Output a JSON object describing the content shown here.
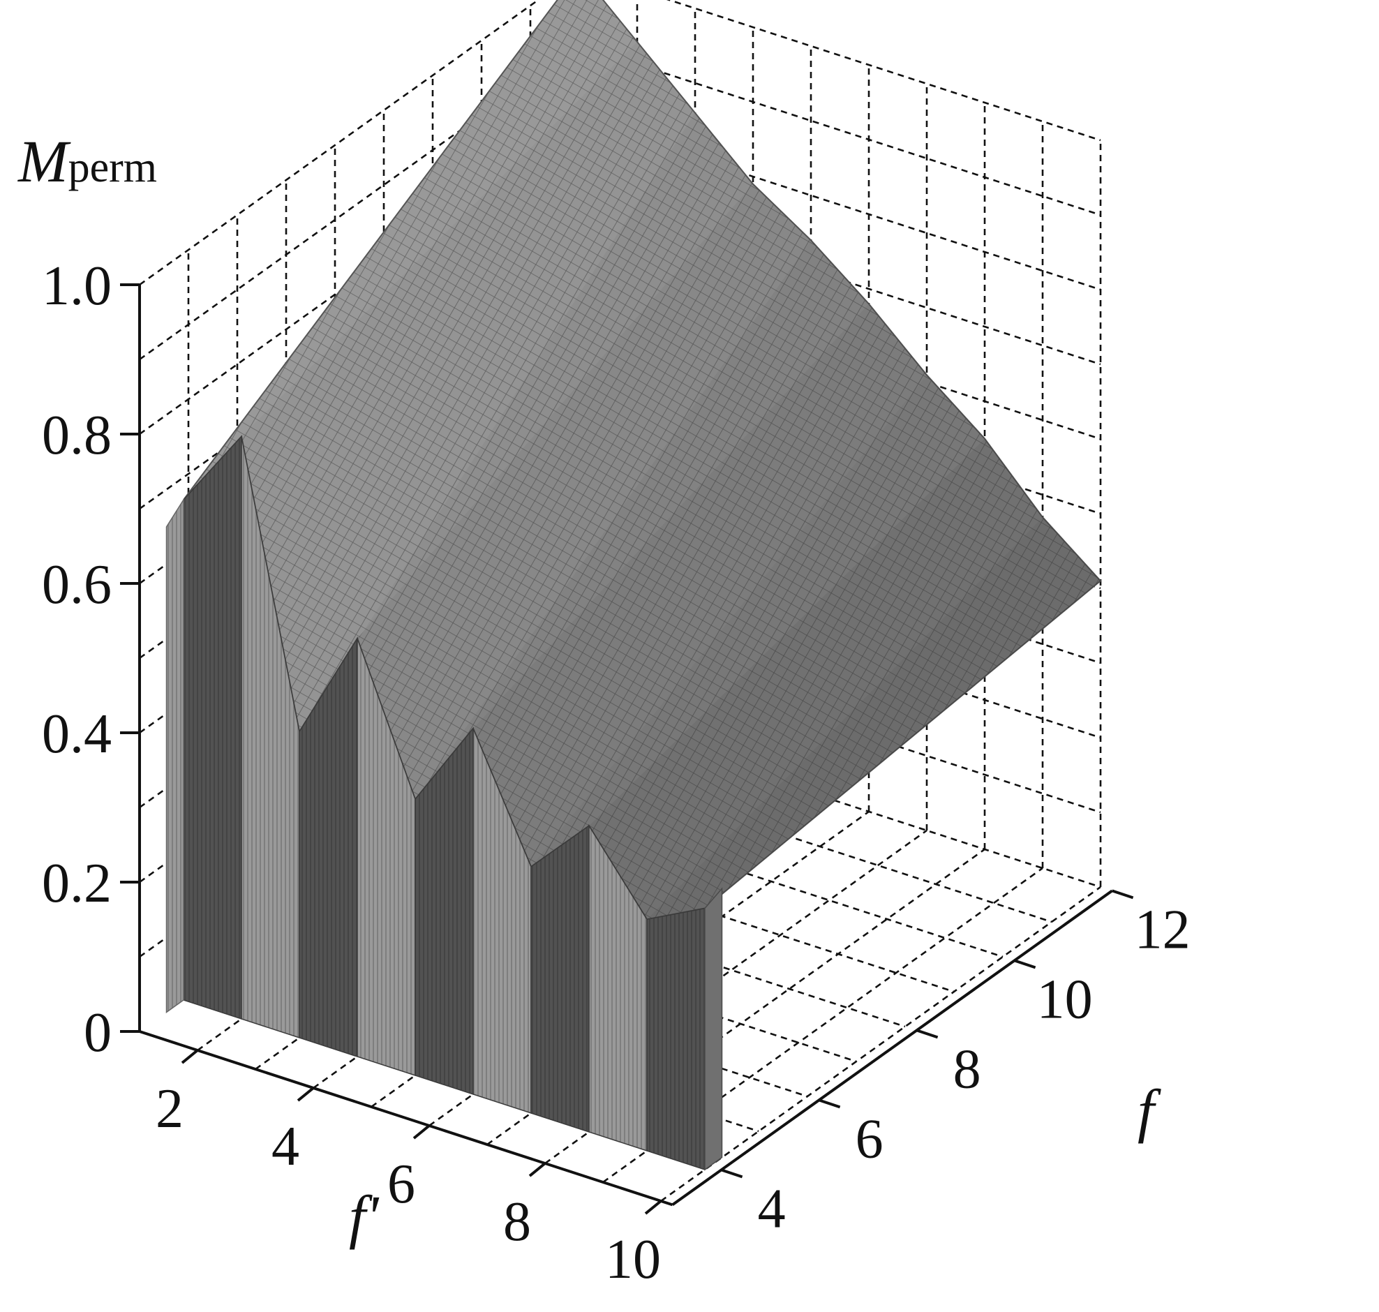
{
  "chart_data": {
    "type": "surface3d",
    "z_label": {
      "main": "M",
      "sub": "perm"
    },
    "x_label": "f'",
    "y_label": "f",
    "z_ticks": [
      "0",
      "0.2",
      "0.4",
      "0.6",
      "0.8",
      "1.0"
    ],
    "x_ticks": [
      "2",
      "4",
      "6",
      "8",
      "10"
    ],
    "y_ticks": [
      "4",
      "6",
      "8",
      "10",
      "12"
    ],
    "xlim": [
      1,
      10
    ],
    "ylim": [
      3,
      12
    ],
    "zlim": [
      0,
      1.0
    ],
    "grid": true,
    "colors": {
      "top_surface": "#9a9a9a",
      "mesh": "#5a5a5a",
      "front_face": "#4e4e4e",
      "side_face": "#8a8a8a",
      "ink": "#111111"
    },
    "front_ridge": [
      {
        "f_prime": 1,
        "M": 0.67
      },
      {
        "f_prime": 2,
        "M": 0.78
      },
      {
        "f_prime": 3,
        "M": 0.41
      },
      {
        "f_prime": 4,
        "M": 0.56
      },
      {
        "f_prime": 5,
        "M": 0.37
      },
      {
        "f_prime": 6,
        "M": 0.49
      },
      {
        "f_prime": 7,
        "M": 0.33
      },
      {
        "f_prime": 8,
        "M": 0.41
      },
      {
        "f_prime": 9,
        "M": 0.31
      },
      {
        "f_prime": 10,
        "M": 0.35
      }
    ],
    "back_ridge": [
      {
        "f_prime": 1,
        "M": 1.0
      },
      {
        "f_prime": 2,
        "M": 0.93
      },
      {
        "f_prime": 3,
        "M": 0.86
      },
      {
        "f_prime": 4,
        "M": 0.79
      },
      {
        "f_prime": 5,
        "M": 0.74
      },
      {
        "f_prime": 6,
        "M": 0.68
      },
      {
        "f_prime": 7,
        "M": 0.61
      },
      {
        "f_prime": 8,
        "M": 0.55
      },
      {
        "f_prime": 9,
        "M": 0.47
      },
      {
        "f_prime": 10,
        "M": 0.41
      }
    ]
  }
}
